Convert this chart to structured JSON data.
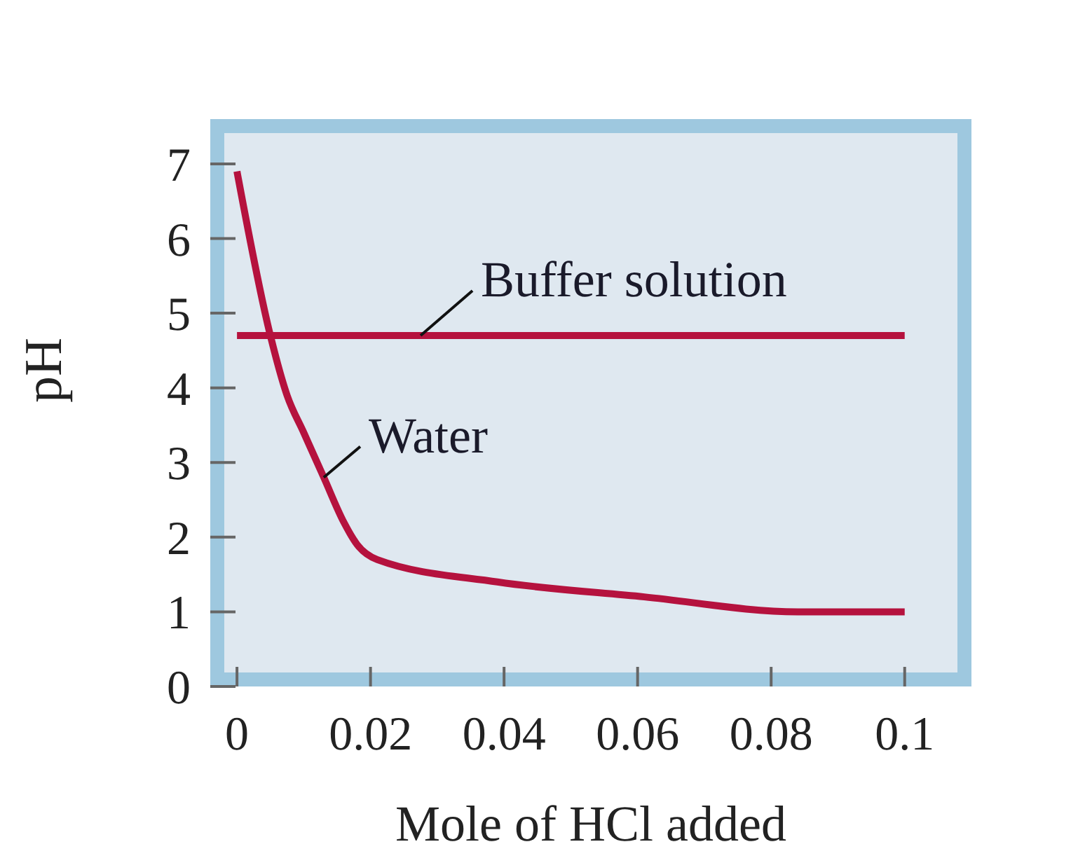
{
  "chart_data": {
    "type": "line",
    "xlabel": "Mole of HCl added",
    "ylabel": "pH",
    "xlim": [
      -0.004,
      0.11
    ],
    "ylim": [
      0,
      7.6
    ],
    "xticks": [
      0,
      0.02,
      0.04,
      0.06,
      0.08,
      0.1
    ],
    "yticks": [
      0,
      1,
      2,
      3,
      4,
      5,
      6,
      7
    ],
    "series": [
      {
        "name": "Buffer solution",
        "color": "#b5123e",
        "x": [
          0,
          0.1
        ],
        "values": [
          4.7,
          4.7
        ]
      },
      {
        "name": "Water",
        "color": "#b5123e",
        "x": [
          0,
          0.005,
          0.0075,
          0.01,
          0.013,
          0.016,
          0.018,
          0.021,
          0.039,
          0.061,
          0.084,
          0.1
        ],
        "values": [
          6.9,
          4.7,
          3.9,
          3.4,
          2.8,
          2.2,
          1.9,
          1.7,
          1.4,
          1.2,
          1.0,
          1.0
        ]
      }
    ]
  }
}
